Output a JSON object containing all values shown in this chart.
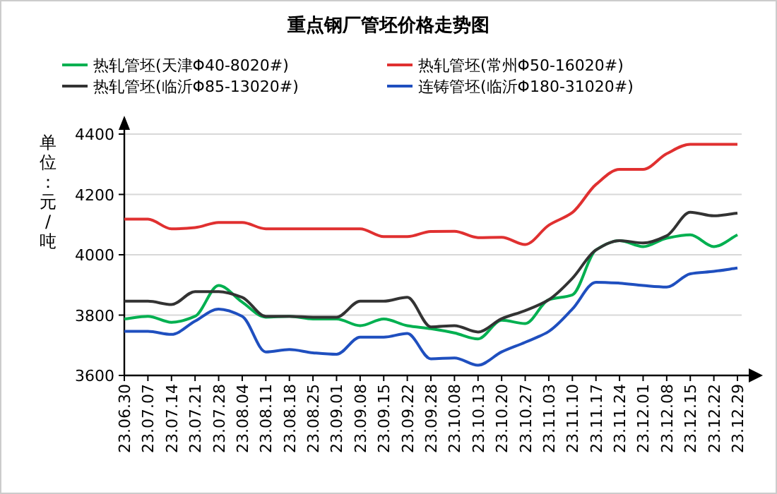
{
  "chart_data": {
    "type": "line",
    "title": "重点钢厂管坯价格走势图",
    "ylabel": "单位：元/吨",
    "categories": [
      "23.06.30",
      "23.07.07",
      "23.07.14",
      "23.07.21",
      "23.07.28",
      "23.08.04",
      "23.08.11",
      "23.08.18",
      "23.08.25",
      "23.09.01",
      "23.09.08",
      "23.09.15",
      "23.09.22",
      "23.09.28",
      "23.10.08",
      "23.10.13",
      "23.10.20",
      "23.10.27",
      "23.11.03",
      "23.11.10",
      "23.11.17",
      "23.11.24",
      "23.12.01",
      "23.12.08",
      "23.12.15",
      "23.12.22",
      "23.12.29"
    ],
    "series": [
      {
        "name": "热轧管坯(天津Φ40-8020#)",
        "color": "#00b050",
        "values": [
          3787,
          3796,
          3776,
          3796,
          3898,
          3843,
          3793,
          3796,
          3787,
          3787,
          3765,
          3787,
          3765,
          3755,
          3741,
          3721,
          3783,
          3772,
          3851,
          3867,
          4016,
          4047,
          4027,
          4055,
          4066,
          4027,
          4066
        ]
      },
      {
        "name": "热轧管坯(常州Φ50-16020#)",
        "color": "#e03030",
        "values": [
          4118,
          4118,
          4086,
          4090,
          4107,
          4107,
          4086,
          4086,
          4086,
          4086,
          4086,
          4060,
          4060,
          4077,
          4078,
          4057,
          4058,
          4034,
          4098,
          4140,
          4233,
          4283,
          4283,
          4335,
          4366,
          4366,
          4366
        ]
      },
      {
        "name": "热轧管坯(临沂Φ85-13020#)",
        "color": "#333333",
        "values": [
          3846,
          3846,
          3835,
          3878,
          3878,
          3859,
          3796,
          3796,
          3793,
          3793,
          3846,
          3846,
          3859,
          3761,
          3765,
          3744,
          3788,
          3815,
          3851,
          3922,
          4016,
          4047,
          4039,
          4063,
          4141,
          4129,
          4138
        ]
      },
      {
        "name": "连铸管坯(临沂Φ180-31020#)",
        "color": "#1f4fbf",
        "values": [
          3746,
          3746,
          3736,
          3780,
          3820,
          3796,
          3678,
          3686,
          3675,
          3670,
          3727,
          3727,
          3739,
          3655,
          3658,
          3634,
          3678,
          3710,
          3746,
          3820,
          3909,
          3906,
          3898,
          3893,
          3937,
          3945,
          3956
        ]
      }
    ],
    "ylim": [
      3600,
      4400
    ],
    "yticks": [
      3600,
      3800,
      4000,
      4200,
      4400
    ],
    "grid": "y",
    "legend": "top"
  }
}
